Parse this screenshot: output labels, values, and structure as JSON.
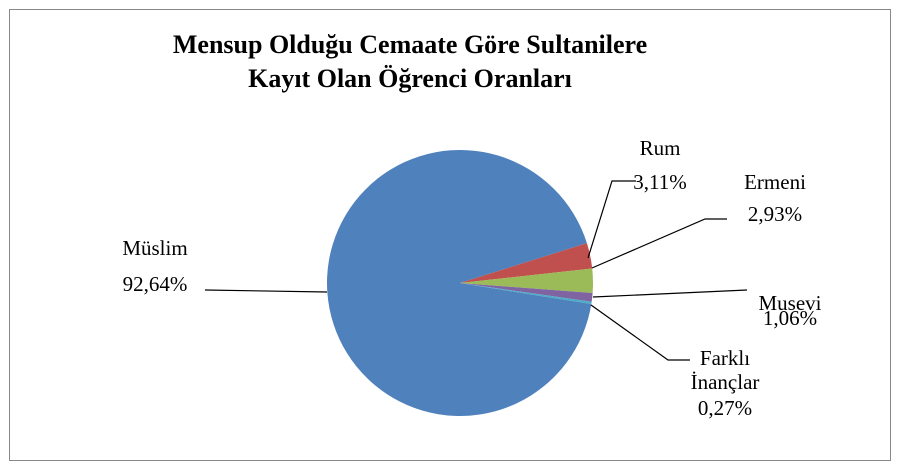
{
  "chart_data": {
    "type": "pie",
    "title": "Mensup Olduğu Cemaate Göre Sultanilere Kayıt Olan Öğrenci Oranları",
    "categories": [
      "Müslim",
      "Rum",
      "Ermeni",
      "Musevi",
      "Farklı İnançlar"
    ],
    "values": [
      92.64,
      3.11,
      2.93,
      1.06,
      0.27
    ],
    "value_labels": [
      "92,64%",
      "3,11%",
      "2,93%",
      "1,06%",
      "0,27%"
    ],
    "colors": [
      "#4f81bd",
      "#c0504d",
      "#9bbb59",
      "#8064a2",
      "#4bacc6"
    ]
  }
}
